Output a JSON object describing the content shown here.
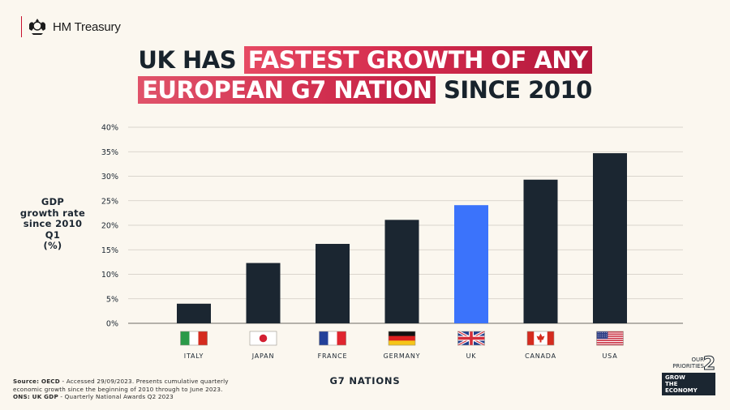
{
  "header": {
    "brand": "HM Treasury"
  },
  "title": {
    "line1_plain": "UK HAS",
    "line1_highlight": "FASTEST GROWTH OF ANY",
    "line2_highlight": "EUROPEAN G7 NATION",
    "line2_plain": "SINCE 2010"
  },
  "chart_data": {
    "type": "bar",
    "title": "UK HAS FASTEST GROWTH OF ANY EUROPEAN G7 NATION SINCE 2010",
    "xlabel": "G7 NATIONS",
    "ylabel": "GDP growth rate since 2010 Q1 (%)",
    "categories": [
      "ITALY",
      "JAPAN",
      "FRANCE",
      "GERMANY",
      "UK",
      "CANADA",
      "USA"
    ],
    "values": [
      4,
      12.3,
      16.2,
      21.1,
      24.1,
      29.3,
      34.7
    ],
    "ylim": [
      0,
      40
    ],
    "yticks": [
      0,
      5,
      10,
      15,
      20,
      25,
      30,
      35,
      40
    ],
    "ytick_labels": [
      "0%",
      "5%",
      "10%",
      "15%",
      "20%",
      "25%",
      "30%",
      "35%",
      "40%"
    ],
    "grid": true,
    "colors": {
      "default": "#1b2631",
      "highlight": "#3b73fb",
      "highlight_category": "UK",
      "grid": "#cfcac2"
    }
  },
  "ylabel_lines": [
    "GDP",
    "growth rate",
    "since 2010 Q1",
    "(%)"
  ],
  "source": {
    "label1": "Source: OECD",
    "text1": " - Accessed 29/09/2023. Presents cumulative quarterly economic growth since the beginning of 2010 through to June 2023.",
    "label2": "ONS: UK GDP",
    "text2": " - Quarterly National Awards Q2 2023"
  },
  "badge": {
    "top_line1": "OUR",
    "top_line2": "PRIORITIES",
    "number": "2",
    "lines": [
      "GROW",
      "THE",
      "ECONOMY"
    ]
  },
  "flags": [
    "italy-flag-icon",
    "japan-flag-icon",
    "france-flag-icon",
    "germany-flag-icon",
    "uk-flag-icon",
    "canada-flag-icon",
    "usa-flag-icon"
  ]
}
